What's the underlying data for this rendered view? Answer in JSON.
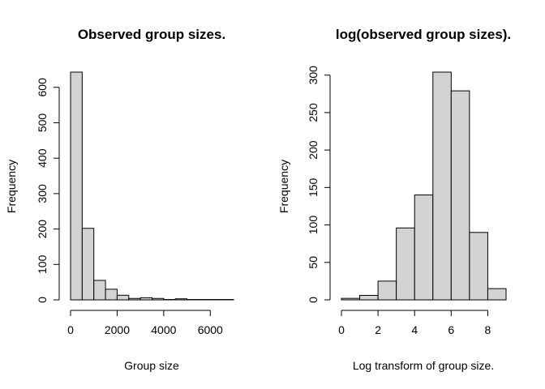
{
  "chart_data": [
    {
      "type": "bar",
      "title": "Observed group sizes.",
      "xlabel": "Group size",
      "ylabel": "Frequency",
      "bin_edges": [
        0,
        500,
        1000,
        1500,
        2000,
        2500,
        3000,
        3500,
        4000,
        4500,
        5000,
        5500,
        6000,
        6500,
        7000
      ],
      "values": [
        643,
        202,
        55,
        30,
        13,
        4,
        6,
        4,
        1,
        3,
        1,
        1,
        1,
        1
      ],
      "xlim": [
        0,
        7000
      ],
      "ylim": [
        0,
        643
      ],
      "xticks": [
        0,
        2000,
        4000,
        6000
      ],
      "xtick_labels": [
        "0",
        "2000",
        "4000",
        "6000"
      ],
      "yticks": [
        0,
        100,
        200,
        300,
        400,
        500,
        600
      ],
      "ytick_labels": [
        "0",
        "100",
        "200",
        "300",
        "400",
        "500",
        "600"
      ]
    },
    {
      "type": "bar",
      "title": "log(observed group sizes).",
      "xlabel": "Log transform of group size.",
      "ylabel": "Frequency",
      "bin_edges": [
        0,
        1,
        2,
        3,
        4,
        5,
        6,
        7,
        8,
        9
      ],
      "values": [
        2,
        6,
        25,
        96,
        140,
        304,
        279,
        90,
        15
      ],
      "xlim": [
        0,
        9
      ],
      "ylim": [
        0,
        304
      ],
      "xticks": [
        0,
        2,
        4,
        6,
        8
      ],
      "xtick_labels": [
        "0",
        "2",
        "4",
        "6",
        "8"
      ],
      "yticks": [
        0,
        50,
        100,
        150,
        200,
        250,
        300
      ],
      "ytick_labels": [
        "0",
        "50",
        "100",
        "150",
        "200",
        "250",
        "300"
      ]
    }
  ]
}
